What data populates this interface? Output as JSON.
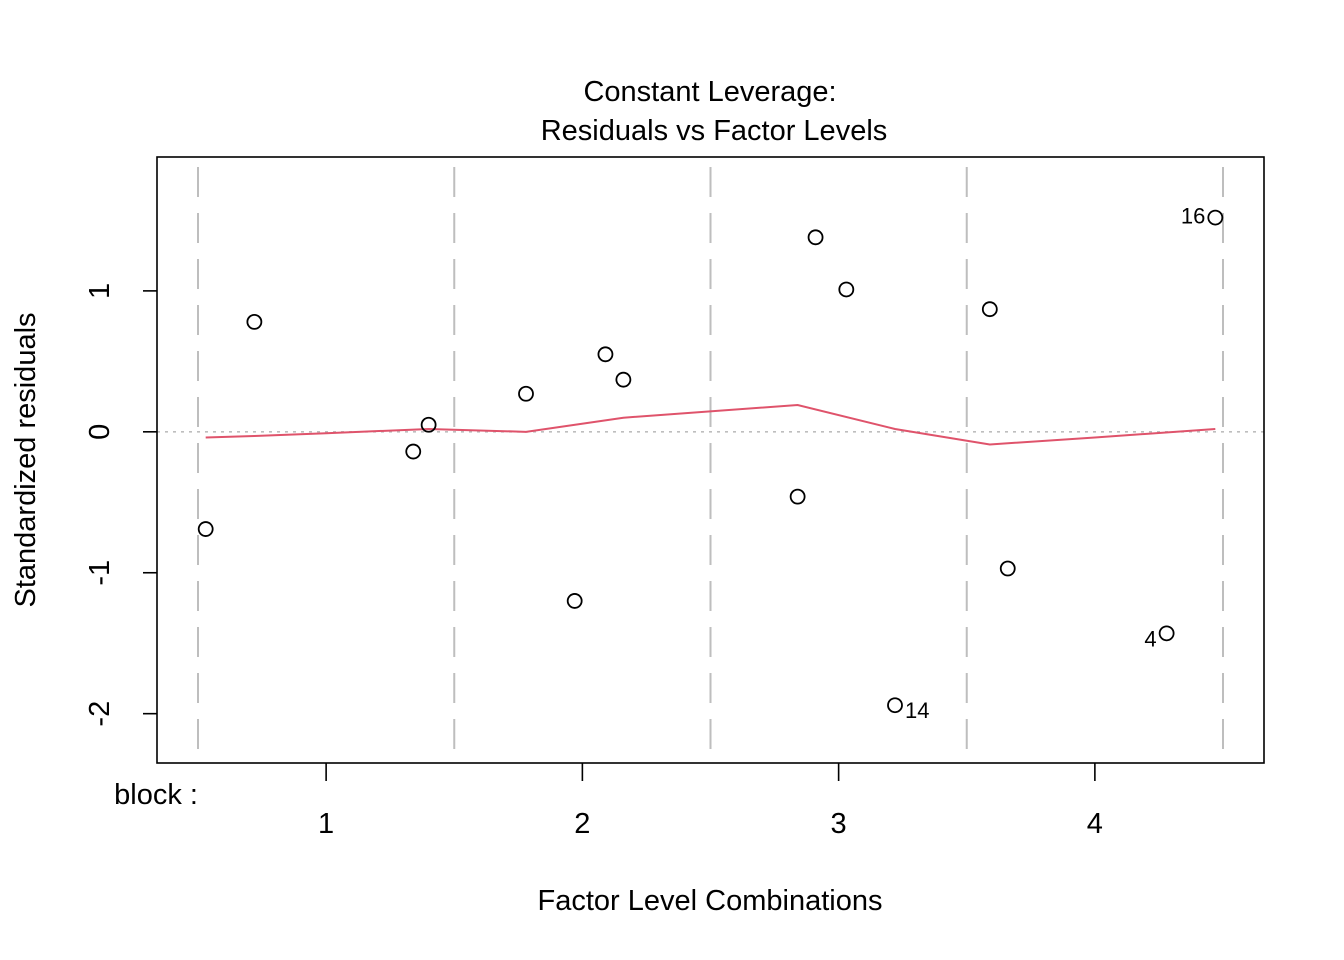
{
  "chart_data": {
    "type": "scatter",
    "title_line1": "Constant Leverage:",
    "title_line2": "Residuals vs Factor Levels",
    "xlabel": "Factor Level Combinations",
    "ylabel": "Standardized residuals",
    "factor_label": "block :",
    "factor_levels": [
      "1",
      "2",
      "3",
      "4"
    ],
    "xlim": [
      0.34,
      4.66
    ],
    "ylim": [
      -2.35,
      1.95
    ],
    "y_ticks": [
      "-2",
      "-1",
      "0",
      "1"
    ],
    "group_separators": [
      0.5,
      1.5,
      2.5,
      3.5,
      4.5
    ],
    "reference_line_y": 0,
    "points": [
      {
        "x": 0.53,
        "y": -0.69,
        "label": ""
      },
      {
        "x": 0.72,
        "y": 0.78,
        "label": ""
      },
      {
        "x": 1.34,
        "y": -0.14,
        "label": ""
      },
      {
        "x": 1.4,
        "y": 0.05,
        "label": ""
      },
      {
        "x": 1.78,
        "y": 0.27,
        "label": ""
      },
      {
        "x": 1.97,
        "y": -1.2,
        "label": ""
      },
      {
        "x": 2.09,
        "y": 0.55,
        "label": ""
      },
      {
        "x": 2.16,
        "y": 0.37,
        "label": ""
      },
      {
        "x": 2.84,
        "y": -0.46,
        "label": ""
      },
      {
        "x": 2.91,
        "y": 1.38,
        "label": ""
      },
      {
        "x": 3.03,
        "y": 1.01,
        "label": ""
      },
      {
        "x": 3.22,
        "y": -1.94,
        "label": "14"
      },
      {
        "x": 3.59,
        "y": 0.87,
        "label": ""
      },
      {
        "x": 3.66,
        "y": -0.97,
        "label": ""
      },
      {
        "x": 4.28,
        "y": -1.43,
        "label": "4"
      },
      {
        "x": 4.47,
        "y": 1.52,
        "label": "16"
      }
    ],
    "smooth_line": [
      {
        "x": 0.53,
        "y": -0.04
      },
      {
        "x": 0.72,
        "y": -0.03
      },
      {
        "x": 1.0,
        "y": -0.01
      },
      {
        "x": 1.4,
        "y": 0.02
      },
      {
        "x": 1.78,
        "y": 0.0
      },
      {
        "x": 2.16,
        "y": 0.1
      },
      {
        "x": 2.84,
        "y": 0.19
      },
      {
        "x": 3.22,
        "y": 0.02
      },
      {
        "x": 3.59,
        "y": -0.09
      },
      {
        "x": 4.0,
        "y": -0.04
      },
      {
        "x": 4.47,
        "y": 0.02
      }
    ],
    "colors": {
      "points": "#000000",
      "smooth_line": "#DF536B",
      "separators": "#BEBEBE",
      "reference_line": "#BEBEBE"
    }
  }
}
